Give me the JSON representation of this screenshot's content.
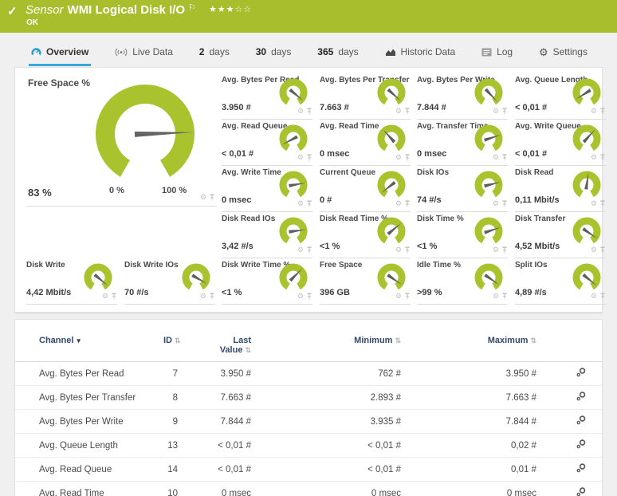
{
  "colors": {
    "header_green": "#a8be2c",
    "gauge_green": "#a9c32f",
    "tab_active_blue": "#38a7da",
    "table_header_text": "#31496b"
  },
  "header": {
    "check_glyph": "✓",
    "kind": "Sensor",
    "title": "WMI Logical Disk I/O",
    "flag_glyph": "⚐",
    "stars_filled": 3,
    "stars_total": 5,
    "status": "OK"
  },
  "tabs": [
    {
      "label": "Overview",
      "icon": "gauge-icon",
      "active": true
    },
    {
      "label": "Live Data",
      "icon": "broadcast-icon",
      "active": false
    },
    {
      "num": "2",
      "label": "days",
      "active": false
    },
    {
      "num": "30",
      "label": "days",
      "active": false
    },
    {
      "num": "365",
      "label": "days",
      "active": false
    },
    {
      "label": "Historic Data",
      "icon": "chart-icon",
      "active": false
    },
    {
      "label": "Log",
      "icon": "log-icon",
      "active": false
    },
    {
      "label": "Settings",
      "icon": "gear-icon",
      "active": false
    }
  ],
  "main_gauge": {
    "title": "Free Space %",
    "value": "83 %",
    "min_label": "0 %",
    "max_label": "100 %",
    "needle_deg": 2
  },
  "gauges": [
    {
      "title": "Avg. Bytes Per Read",
      "value": "3.950 #",
      "needle_deg": -40,
      "row": 0,
      "col": 2
    },
    {
      "title": "Avg. Bytes Per Transfer",
      "value": "7.663 #",
      "needle_deg": -42,
      "row": 0,
      "col": 3
    },
    {
      "title": "Avg. Bytes Per Write",
      "value": "7.844 #",
      "needle_deg": -47,
      "row": 0,
      "col": 4
    },
    {
      "title": "Avg. Queue Length",
      "value": "< 0,01 #",
      "needle_deg": 212,
      "row": 0,
      "col": 5
    },
    {
      "title": "Avg. Read Queue",
      "value": "< 0,01 #",
      "needle_deg": 208,
      "row": 1,
      "col": 2
    },
    {
      "title": "Avg. Read Time",
      "value": "0 msec",
      "needle_deg": 132,
      "row": 1,
      "col": 3
    },
    {
      "title": "Avg. Transfer Time",
      "value": "0 msec",
      "needle_deg": 18,
      "row": 1,
      "col": 4
    },
    {
      "title": "Avg. Write Queue",
      "value": "< 0,01 #",
      "needle_deg": 48,
      "row": 1,
      "col": 5
    },
    {
      "title": "Avg. Write Time",
      "value": "0 msec",
      "needle_deg": 10,
      "row": 2,
      "col": 2
    },
    {
      "title": "Current Queue",
      "value": "0 #",
      "needle_deg": 218,
      "row": 2,
      "col": 3
    },
    {
      "title": "Disk IOs",
      "value": "74 #/s",
      "needle_deg": 14,
      "row": 2,
      "col": 4
    },
    {
      "title": "Disk Read",
      "value": "0,11 Mbit/s",
      "needle_deg": 82,
      "row": 2,
      "col": 5
    },
    {
      "title": "Disk Read IOs",
      "value": "3,42 #/s",
      "needle_deg": 8,
      "row": 3,
      "col": 2
    },
    {
      "title": "Disk Read Time %",
      "value": "<1 %",
      "needle_deg": 40,
      "row": 3,
      "col": 3
    },
    {
      "title": "Disk Time %",
      "value": "<1 %",
      "needle_deg": 18,
      "row": 3,
      "col": 4
    },
    {
      "title": "Disk Transfer",
      "value": "4,52 Mbit/s",
      "needle_deg": -35,
      "row": 3,
      "col": 5
    },
    {
      "title": "Disk Write",
      "value": "4,42 Mbit/s",
      "needle_deg": -40,
      "row": 4,
      "col": 0
    },
    {
      "title": "Disk Write IOs",
      "value": "70 #/s",
      "needle_deg": -30,
      "row": 4,
      "col": 1
    },
    {
      "title": "Disk Write Time %",
      "value": "<1 %",
      "needle_deg": 45,
      "row": 4,
      "col": 2
    },
    {
      "title": "Free Space",
      "value": "396 GB",
      "needle_deg": -35,
      "row": 4,
      "col": 3
    },
    {
      "title": "Idle Time %",
      "value": ">99 %",
      "needle_deg": -35,
      "row": 4,
      "col": 4
    },
    {
      "title": "Split IOs",
      "value": "4,89 #/s",
      "needle_deg": -40,
      "row": 4,
      "col": 5
    }
  ],
  "table": {
    "headers": [
      {
        "label": "Channel",
        "sort": "desc",
        "stacked": false
      },
      {
        "label": "ID",
        "sort": "both",
        "stacked": false
      },
      {
        "label": "Last Value",
        "sort": "both",
        "stacked": true
      },
      {
        "label": "Minimum",
        "sort": "both",
        "stacked": false
      },
      {
        "label": "Maximum",
        "sort": "both",
        "stacked": false
      }
    ],
    "rows": [
      {
        "channel": "Avg. Bytes Per Read",
        "id": "7",
        "last": "3.950 #",
        "min": "762 #",
        "max": "3.950 #"
      },
      {
        "channel": "Avg. Bytes Per Transfer",
        "id": "8",
        "last": "7.663 #",
        "min": "2.893 #",
        "max": "7.663 #"
      },
      {
        "channel": "Avg. Bytes Per Write",
        "id": "9",
        "last": "7.844 #",
        "min": "3.935 #",
        "max": "7.844 #"
      },
      {
        "channel": "Avg. Queue Length",
        "id": "13",
        "last": "< 0,01 #",
        "min": "< 0,01 #",
        "max": "0,02 #"
      },
      {
        "channel": "Avg. Read Queue",
        "id": "14",
        "last": "< 0,01 #",
        "min": "< 0,01 #",
        "max": "0,01 #"
      },
      {
        "channel": "Avg. Read Time",
        "id": "10",
        "last": "0 msec",
        "min": "0 msec",
        "max": "0 msec"
      }
    ]
  }
}
